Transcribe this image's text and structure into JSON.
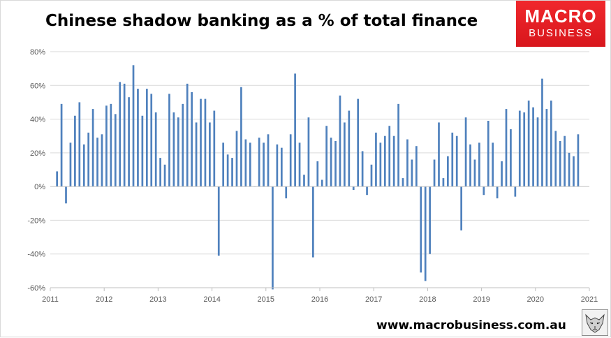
{
  "title": "Chinese shadow banking as a % of total finance",
  "logo": {
    "line1": "MACRO",
    "line2": "BUSINESS"
  },
  "footer_url": "www.macrobusiness.com.au",
  "colors": {
    "bar": "#4f81bd",
    "grid": "#d9d9d9",
    "axis": "#bfbfbf",
    "logo_red": "#e8242a"
  },
  "icons": {
    "logo_emblem": "fox-sketch-icon"
  },
  "chart_data": {
    "type": "bar",
    "title": "Chinese shadow banking as a % of total finance",
    "xlabel": "",
    "ylabel": "",
    "ylim": [
      -60,
      80
    ],
    "yticks": [
      "-60%",
      "-40%",
      "-20%",
      "0%",
      "20%",
      "40%",
      "60%",
      "80%"
    ],
    "xlim": [
      2011,
      2021
    ],
    "xticks": [
      "2011",
      "2012",
      "2013",
      "2014",
      "2015",
      "2016",
      "2017",
      "2018",
      "2019",
      "2020",
      "2021"
    ],
    "grid": "horizontal",
    "legend": "none",
    "x_start": "2011-02",
    "frequency": "monthly",
    "values": [
      9,
      49,
      -10,
      26,
      42,
      50,
      25,
      32,
      46,
      29,
      31,
      48,
      49,
      43,
      62,
      61,
      53,
      72,
      58,
      42,
      58,
      55,
      44,
      17,
      13,
      55,
      44,
      41,
      49,
      61,
      56,
      38,
      52,
      52,
      38,
      45,
      -41,
      26,
      19,
      17,
      33,
      59,
      28,
      26,
      0,
      29,
      26,
      31,
      -61,
      25,
      23,
      -7,
      31,
      67,
      26,
      7,
      41,
      -42,
      15,
      4,
      36,
      29,
      27,
      54,
      38,
      45,
      -2,
      52,
      21,
      -5,
      13,
      32,
      26,
      30,
      36,
      30,
      49,
      5,
      28,
      16,
      24,
      -51,
      -56,
      -40,
      16,
      38,
      5,
      18,
      32,
      30,
      -26,
      41,
      25,
      16,
      26,
      -5,
      39,
      26,
      -7,
      15,
      46,
      34,
      -6,
      45,
      44,
      51,
      47,
      41,
      64,
      46,
      51,
      33,
      27,
      30,
      20,
      18,
      31
    ]
  }
}
